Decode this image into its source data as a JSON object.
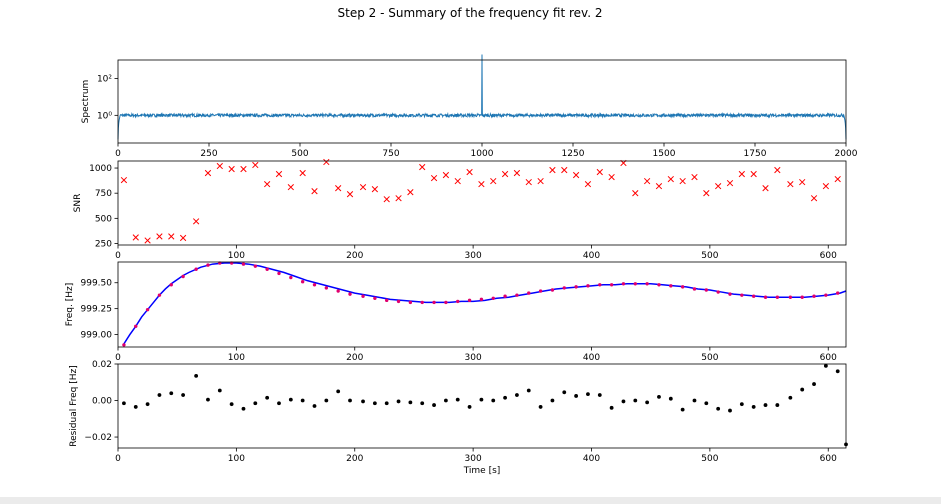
{
  "chart_data": [
    {
      "panel": "spectrum",
      "type": "line",
      "title": "Step 2 - Summary of the frequency fit rev. 2",
      "xlabel": "",
      "ylabel": "Spectrum",
      "y_scale": "log",
      "xlim": [
        0,
        2000
      ],
      "ylim_log10": [
        -1.5,
        3.0
      ],
      "x_ticks": [
        "0",
        "250",
        "500",
        "750",
        "1000",
        "1250",
        "1500",
        "1750",
        "2000"
      ],
      "y_ticks": [
        "10⁰",
        "10²"
      ],
      "baseline": 1.0,
      "peak_x": 1000,
      "peak_value": 2000,
      "edge_value": 0.05,
      "color": "#1f77b4"
    },
    {
      "panel": "snr",
      "type": "scatter",
      "xlabel": "",
      "ylabel": "SNR",
      "xlim": [
        0,
        615
      ],
      "ylim": [
        235,
        1070
      ],
      "x_ticks": [
        "0",
        "100",
        "200",
        "300",
        "400",
        "500",
        "600"
      ],
      "y_ticks": [
        "250",
        "500",
        "750",
        "1000"
      ],
      "marker": "x",
      "color": "#ff0000",
      "x": [
        5,
        15,
        25,
        35,
        45,
        55,
        66,
        76,
        86,
        96,
        106,
        116,
        126,
        136,
        146,
        156,
        166,
        176,
        186,
        196,
        207,
        217,
        227,
        237,
        247,
        257,
        267,
        277,
        287,
        297,
        307,
        317,
        327,
        337,
        347,
        357,
        367,
        377,
        387,
        397,
        407,
        417,
        427,
        437,
        447,
        457,
        467,
        477,
        487,
        497,
        507,
        517,
        527,
        537,
        547,
        557,
        568,
        578,
        588,
        598,
        608
      ],
      "y": [
        880,
        310,
        280,
        320,
        320,
        305,
        470,
        950,
        1020,
        990,
        990,
        1030,
        840,
        940,
        810,
        950,
        770,
        1060,
        800,
        740,
        810,
        790,
        690,
        700,
        760,
        1010,
        900,
        930,
        870,
        960,
        840,
        870,
        940,
        950,
        860,
        870,
        980,
        980,
        930,
        840,
        960,
        910,
        1050,
        750,
        870,
        820,
        890,
        870,
        910,
        750,
        820,
        850,
        940,
        940,
        800,
        980,
        840,
        860,
        700,
        820,
        890
      ]
    },
    {
      "panel": "frequency",
      "type": "line",
      "xlabel": "",
      "ylabel": "Freq. [Hz]",
      "xlim": [
        0,
        615
      ],
      "ylim": [
        998.88,
        999.7
      ],
      "x_ticks": [
        "0",
        "100",
        "200",
        "300",
        "400",
        "500",
        "600"
      ],
      "y_ticks": [
        "999.00",
        "999.25",
        "999.50"
      ],
      "series": [
        {
          "role": "fit",
          "color": "#0000ff",
          "x": [
            5,
            10,
            15,
            20,
            25,
            30,
            35,
            40,
            45,
            50,
            55,
            60,
            70,
            80,
            90,
            100,
            110,
            120,
            130,
            140,
            150,
            160,
            170,
            180,
            190,
            200,
            210,
            220,
            230,
            240,
            250,
            260,
            270,
            280,
            290,
            300,
            310,
            320,
            330,
            340,
            350,
            360,
            370,
            380,
            390,
            400,
            410,
            420,
            430,
            440,
            450,
            460,
            470,
            480,
            490,
            500,
            510,
            520,
            530,
            540,
            550,
            560,
            570,
            580,
            590,
            600,
            610,
            615
          ],
          "y": [
            998.91,
            999.0,
            999.08,
            999.17,
            999.24,
            999.31,
            999.38,
            999.44,
            999.49,
            999.53,
            999.57,
            999.6,
            999.65,
            999.68,
            999.69,
            999.69,
            999.68,
            999.66,
            999.63,
            999.6,
            999.56,
            999.52,
            999.49,
            999.46,
            999.43,
            999.4,
            999.38,
            999.36,
            999.34,
            999.33,
            999.32,
            999.31,
            999.31,
            999.31,
            999.32,
            999.32,
            999.33,
            999.35,
            999.36,
            999.38,
            999.4,
            999.42,
            999.44,
            999.45,
            999.46,
            999.47,
            999.48,
            999.48,
            999.49,
            999.49,
            999.49,
            999.48,
            999.47,
            999.46,
            999.44,
            999.43,
            999.41,
            999.39,
            999.38,
            999.37,
            999.36,
            999.36,
            999.36,
            999.36,
            999.37,
            999.38,
            999.4,
            999.42
          ]
        },
        {
          "role": "data",
          "color": "#e0006e",
          "x": [
            5,
            15,
            25,
            35,
            45,
            55,
            66,
            76,
            86,
            96,
            106,
            116,
            126,
            136,
            146,
            156,
            166,
            176,
            186,
            196,
            207,
            217,
            227,
            237,
            247,
            257,
            267,
            277,
            287,
            297,
            307,
            317,
            327,
            337,
            347,
            357,
            367,
            377,
            387,
            397,
            407,
            417,
            427,
            437,
            447,
            457,
            467,
            477,
            487,
            497,
            507,
            517,
            527,
            537,
            547,
            557,
            568,
            578,
            588,
            598,
            608
          ],
          "y": [
            998.9,
            999.08,
            999.24,
            999.38,
            999.48,
            999.56,
            999.63,
            999.67,
            999.69,
            999.69,
            999.68,
            999.66,
            999.63,
            999.59,
            999.55,
            999.51,
            999.48,
            999.45,
            999.42,
            999.39,
            999.37,
            999.35,
            999.33,
            999.32,
            999.31,
            999.31,
            999.31,
            999.31,
            999.32,
            999.33,
            999.34,
            999.35,
            999.37,
            999.38,
            999.4,
            999.42,
            999.43,
            999.45,
            999.46,
            999.47,
            999.48,
            999.48,
            999.49,
            999.49,
            999.49,
            999.48,
            999.47,
            999.46,
            999.44,
            999.43,
            999.41,
            999.39,
            999.38,
            999.37,
            999.36,
            999.36,
            999.36,
            999.36,
            999.37,
            999.38,
            999.4
          ]
        }
      ]
    },
    {
      "panel": "residual",
      "type": "scatter",
      "xlabel": "Time [s]",
      "ylabel": "Residual Freq [Hz]",
      "xlim": [
        0,
        615
      ],
      "ylim": [
        -0.026,
        0.02
      ],
      "x_ticks": [
        "0",
        "100",
        "200",
        "300",
        "400",
        "500",
        "600"
      ],
      "y_ticks": [
        "−0.02",
        "0.00",
        "0.02"
      ],
      "marker": "o",
      "color": "#000000",
      "x": [
        5,
        15,
        25,
        35,
        45,
        55,
        66,
        76,
        86,
        96,
        106,
        116,
        126,
        136,
        146,
        156,
        166,
        176,
        186,
        196,
        207,
        217,
        227,
        237,
        247,
        257,
        267,
        277,
        287,
        297,
        307,
        317,
        327,
        337,
        347,
        357,
        367,
        377,
        387,
        397,
        407,
        417,
        427,
        437,
        447,
        457,
        467,
        477,
        487,
        497,
        507,
        517,
        527,
        537,
        547,
        557,
        568,
        578,
        588,
        598,
        608,
        615
      ],
      "y": [
        -0.0015,
        -0.0035,
        -0.002,
        0.003,
        0.004,
        0.003,
        0.0135,
        0.0005,
        0.0055,
        -0.002,
        -0.0045,
        -0.0015,
        0.0015,
        -0.0015,
        0.0005,
        0.0,
        -0.003,
        0.0,
        0.005,
        0.0,
        -0.0005,
        -0.0015,
        -0.0015,
        -0.0005,
        -0.001,
        -0.0015,
        -0.0025,
        0.0,
        0.0005,
        -0.0035,
        0.0005,
        0.0,
        0.0015,
        0.003,
        0.0055,
        -0.0035,
        0.0,
        0.0045,
        0.0025,
        0.0035,
        0.003,
        -0.004,
        -0.0005,
        0.0,
        -0.001,
        0.002,
        0.001,
        -0.005,
        0.0,
        -0.0015,
        -0.0045,
        -0.0055,
        -0.002,
        -0.0035,
        -0.0025,
        -0.0025,
        0.0015,
        0.006,
        0.009,
        0.019,
        0.016,
        -0.024
      ]
    }
  ]
}
